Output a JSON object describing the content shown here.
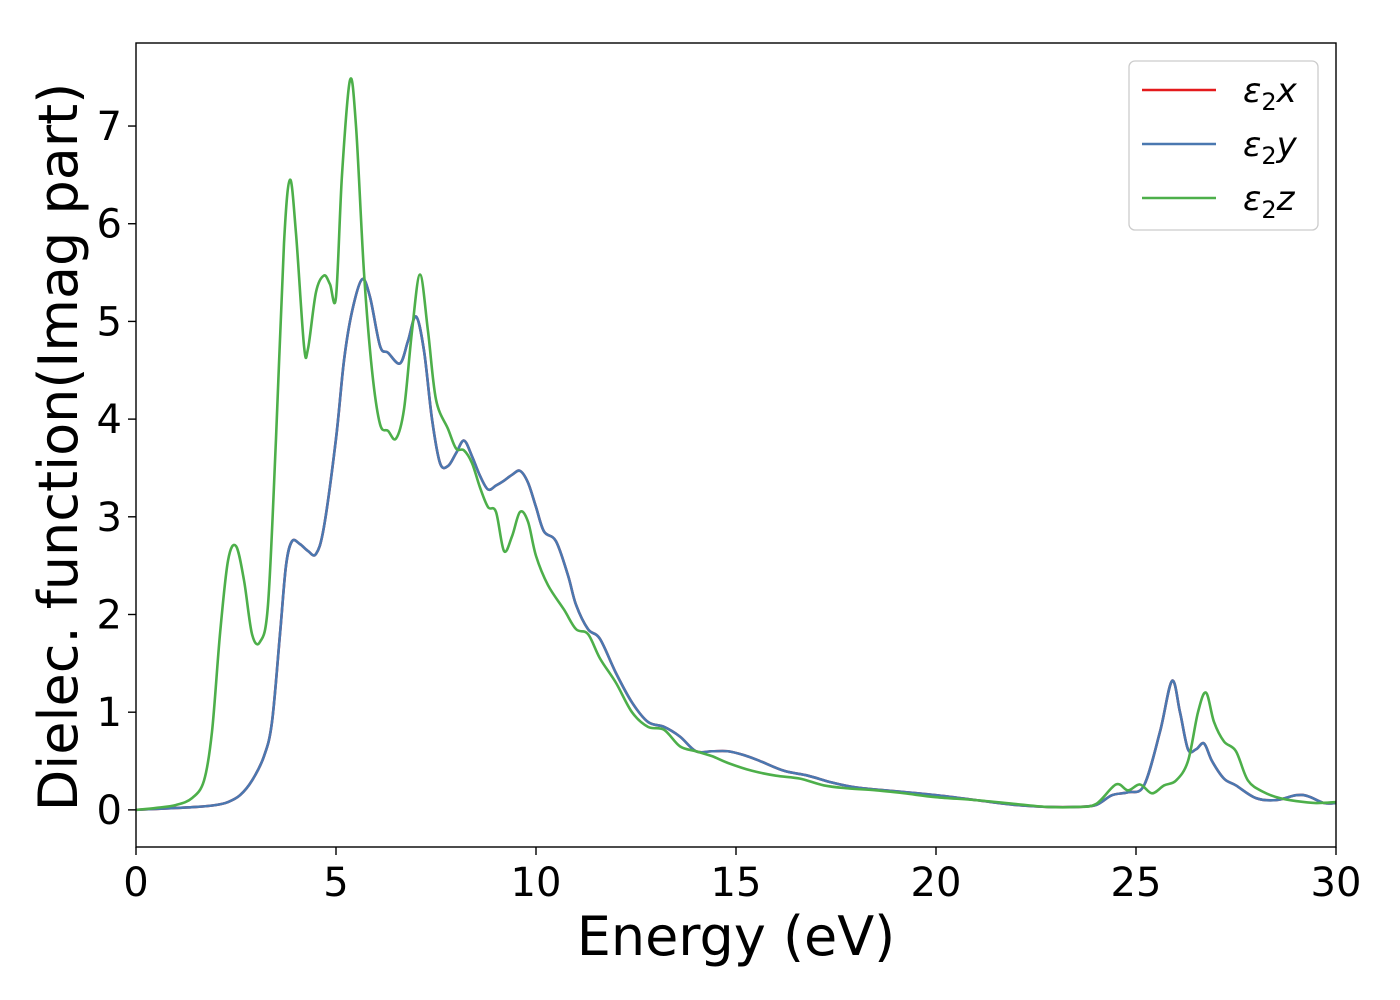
{
  "chart_data": {
    "type": "line",
    "xlabel": "Energy (eV)",
    "ylabel": "Dielec. function(Imag part)",
    "xlim": [
      0,
      30
    ],
    "ylim": [
      -0.38,
      7.85
    ],
    "xticks": [
      0,
      5,
      10,
      15,
      20,
      25,
      30
    ],
    "yticks": [
      0,
      1,
      2,
      3,
      4,
      5,
      6,
      7
    ],
    "grid": false,
    "legend_position": "top-right",
    "series": [
      {
        "name": "ε2x",
        "legend_base": "ε",
        "legend_sub": "2",
        "legend_var": "x",
        "color": "#e41a1c",
        "points": [
          [
            0,
            0.0
          ],
          [
            0.5,
            0.01
          ],
          [
            1.0,
            0.02
          ],
          [
            1.5,
            0.03
          ],
          [
            2.0,
            0.05
          ],
          [
            2.3,
            0.08
          ],
          [
            2.6,
            0.15
          ],
          [
            2.9,
            0.3
          ],
          [
            3.2,
            0.55
          ],
          [
            3.4,
            0.9
          ],
          [
            3.6,
            1.8
          ],
          [
            3.75,
            2.5
          ],
          [
            3.9,
            2.75
          ],
          [
            4.1,
            2.72
          ],
          [
            4.3,
            2.65
          ],
          [
            4.5,
            2.62
          ],
          [
            4.7,
            2.9
          ],
          [
            5.0,
            3.8
          ],
          [
            5.2,
            4.6
          ],
          [
            5.4,
            5.1
          ],
          [
            5.65,
            5.43
          ],
          [
            5.85,
            5.25
          ],
          [
            6.1,
            4.75
          ],
          [
            6.3,
            4.68
          ],
          [
            6.6,
            4.57
          ],
          [
            6.8,
            4.8
          ],
          [
            7.0,
            5.05
          ],
          [
            7.2,
            4.7
          ],
          [
            7.4,
            4.0
          ],
          [
            7.6,
            3.55
          ],
          [
            7.8,
            3.52
          ],
          [
            8.0,
            3.65
          ],
          [
            8.2,
            3.78
          ],
          [
            8.4,
            3.62
          ],
          [
            8.6,
            3.42
          ],
          [
            8.8,
            3.28
          ],
          [
            9.0,
            3.32
          ],
          [
            9.2,
            3.37
          ],
          [
            9.4,
            3.43
          ],
          [
            9.6,
            3.47
          ],
          [
            9.8,
            3.35
          ],
          [
            10.0,
            3.1
          ],
          [
            10.2,
            2.85
          ],
          [
            10.5,
            2.75
          ],
          [
            10.8,
            2.4
          ],
          [
            11.0,
            2.1
          ],
          [
            11.3,
            1.85
          ],
          [
            11.6,
            1.75
          ],
          [
            12.0,
            1.4
          ],
          [
            12.4,
            1.1
          ],
          [
            12.8,
            0.9
          ],
          [
            13.2,
            0.85
          ],
          [
            13.6,
            0.75
          ],
          [
            14.0,
            0.6
          ],
          [
            14.4,
            0.6
          ],
          [
            14.8,
            0.6
          ],
          [
            15.2,
            0.56
          ],
          [
            15.6,
            0.5
          ],
          [
            16.2,
            0.4
          ],
          [
            16.8,
            0.35
          ],
          [
            17.4,
            0.28
          ],
          [
            18.0,
            0.23
          ],
          [
            19.0,
            0.19
          ],
          [
            20.0,
            0.15
          ],
          [
            21.0,
            0.1
          ],
          [
            22.0,
            0.05
          ],
          [
            22.8,
            0.03
          ],
          [
            23.5,
            0.03
          ],
          [
            24.0,
            0.05
          ],
          [
            24.4,
            0.15
          ],
          [
            24.8,
            0.18
          ],
          [
            25.2,
            0.25
          ],
          [
            25.6,
            0.8
          ],
          [
            25.9,
            1.32
          ],
          [
            26.1,
            1.0
          ],
          [
            26.3,
            0.62
          ],
          [
            26.5,
            0.62
          ],
          [
            26.7,
            0.68
          ],
          [
            26.9,
            0.5
          ],
          [
            27.2,
            0.32
          ],
          [
            27.5,
            0.25
          ],
          [
            28.0,
            0.12
          ],
          [
            28.5,
            0.1
          ],
          [
            29.0,
            0.15
          ],
          [
            29.3,
            0.14
          ],
          [
            29.7,
            0.07
          ],
          [
            30.0,
            0.07
          ]
        ]
      },
      {
        "name": "ε2y",
        "legend_base": "ε",
        "legend_sub": "2",
        "legend_var": "y",
        "color": "#4a78b0",
        "points": [
          [
            0,
            0.0
          ],
          [
            0.5,
            0.01
          ],
          [
            1.0,
            0.02
          ],
          [
            1.5,
            0.03
          ],
          [
            2.0,
            0.05
          ],
          [
            2.3,
            0.08
          ],
          [
            2.6,
            0.15
          ],
          [
            2.9,
            0.3
          ],
          [
            3.2,
            0.55
          ],
          [
            3.4,
            0.9
          ],
          [
            3.6,
            1.8
          ],
          [
            3.75,
            2.5
          ],
          [
            3.9,
            2.75
          ],
          [
            4.1,
            2.72
          ],
          [
            4.3,
            2.65
          ],
          [
            4.5,
            2.62
          ],
          [
            4.7,
            2.9
          ],
          [
            5.0,
            3.8
          ],
          [
            5.2,
            4.6
          ],
          [
            5.4,
            5.1
          ],
          [
            5.65,
            5.43
          ],
          [
            5.85,
            5.25
          ],
          [
            6.1,
            4.75
          ],
          [
            6.3,
            4.68
          ],
          [
            6.6,
            4.57
          ],
          [
            6.8,
            4.8
          ],
          [
            7.0,
            5.05
          ],
          [
            7.2,
            4.7
          ],
          [
            7.4,
            4.0
          ],
          [
            7.6,
            3.55
          ],
          [
            7.8,
            3.52
          ],
          [
            8.0,
            3.65
          ],
          [
            8.2,
            3.78
          ],
          [
            8.4,
            3.62
          ],
          [
            8.6,
            3.42
          ],
          [
            8.8,
            3.28
          ],
          [
            9.0,
            3.32
          ],
          [
            9.2,
            3.37
          ],
          [
            9.4,
            3.43
          ],
          [
            9.6,
            3.47
          ],
          [
            9.8,
            3.35
          ],
          [
            10.0,
            3.1
          ],
          [
            10.2,
            2.85
          ],
          [
            10.5,
            2.75
          ],
          [
            10.8,
            2.4
          ],
          [
            11.0,
            2.1
          ],
          [
            11.3,
            1.85
          ],
          [
            11.6,
            1.75
          ],
          [
            12.0,
            1.4
          ],
          [
            12.4,
            1.1
          ],
          [
            12.8,
            0.9
          ],
          [
            13.2,
            0.85
          ],
          [
            13.6,
            0.75
          ],
          [
            14.0,
            0.6
          ],
          [
            14.4,
            0.6
          ],
          [
            14.8,
            0.6
          ],
          [
            15.2,
            0.56
          ],
          [
            15.6,
            0.5
          ],
          [
            16.2,
            0.4
          ],
          [
            16.8,
            0.35
          ],
          [
            17.4,
            0.28
          ],
          [
            18.0,
            0.23
          ],
          [
            19.0,
            0.19
          ],
          [
            20.0,
            0.15
          ],
          [
            21.0,
            0.1
          ],
          [
            22.0,
            0.05
          ],
          [
            22.8,
            0.03
          ],
          [
            23.5,
            0.03
          ],
          [
            24.0,
            0.05
          ],
          [
            24.4,
            0.15
          ],
          [
            24.8,
            0.18
          ],
          [
            25.2,
            0.25
          ],
          [
            25.6,
            0.8
          ],
          [
            25.9,
            1.32
          ],
          [
            26.1,
            1.0
          ],
          [
            26.3,
            0.62
          ],
          [
            26.5,
            0.62
          ],
          [
            26.7,
            0.68
          ],
          [
            26.9,
            0.5
          ],
          [
            27.2,
            0.32
          ],
          [
            27.5,
            0.25
          ],
          [
            28.0,
            0.12
          ],
          [
            28.5,
            0.1
          ],
          [
            29.0,
            0.15
          ],
          [
            29.3,
            0.14
          ],
          [
            29.7,
            0.07
          ],
          [
            30.0,
            0.07
          ]
        ]
      },
      {
        "name": "ε2z",
        "legend_base": "ε",
        "legend_sub": "2",
        "legend_var": "z",
        "color": "#4daf4a",
        "points": [
          [
            0,
            0.0
          ],
          [
            0.5,
            0.02
          ],
          [
            1.0,
            0.05
          ],
          [
            1.4,
            0.12
          ],
          [
            1.7,
            0.3
          ],
          [
            1.9,
            0.8
          ],
          [
            2.1,
            1.8
          ],
          [
            2.3,
            2.55
          ],
          [
            2.5,
            2.7
          ],
          [
            2.7,
            2.35
          ],
          [
            2.9,
            1.8
          ],
          [
            3.1,
            1.72
          ],
          [
            3.3,
            2.1
          ],
          [
            3.5,
            3.8
          ],
          [
            3.7,
            5.8
          ],
          [
            3.85,
            6.45
          ],
          [
            4.0,
            5.9
          ],
          [
            4.2,
            4.75
          ],
          [
            4.3,
            4.72
          ],
          [
            4.5,
            5.3
          ],
          [
            4.7,
            5.47
          ],
          [
            4.85,
            5.38
          ],
          [
            5.0,
            5.25
          ],
          [
            5.15,
            6.5
          ],
          [
            5.35,
            7.47
          ],
          [
            5.5,
            7.0
          ],
          [
            5.7,
            5.5
          ],
          [
            5.9,
            4.5
          ],
          [
            6.1,
            3.95
          ],
          [
            6.3,
            3.88
          ],
          [
            6.5,
            3.8
          ],
          [
            6.7,
            4.1
          ],
          [
            6.9,
            4.9
          ],
          [
            7.1,
            5.48
          ],
          [
            7.3,
            4.9
          ],
          [
            7.5,
            4.2
          ],
          [
            7.8,
            3.9
          ],
          [
            8.0,
            3.7
          ],
          [
            8.2,
            3.68
          ],
          [
            8.4,
            3.55
          ],
          [
            8.6,
            3.3
          ],
          [
            8.8,
            3.1
          ],
          [
            9.0,
            3.05
          ],
          [
            9.2,
            2.65
          ],
          [
            9.4,
            2.8
          ],
          [
            9.6,
            3.05
          ],
          [
            9.8,
            2.95
          ],
          [
            10.0,
            2.6
          ],
          [
            10.3,
            2.3
          ],
          [
            10.7,
            2.05
          ],
          [
            11.0,
            1.85
          ],
          [
            11.3,
            1.8
          ],
          [
            11.6,
            1.55
          ],
          [
            12.0,
            1.3
          ],
          [
            12.4,
            1.0
          ],
          [
            12.8,
            0.85
          ],
          [
            13.2,
            0.82
          ],
          [
            13.6,
            0.65
          ],
          [
            14.0,
            0.6
          ],
          [
            14.4,
            0.55
          ],
          [
            14.8,
            0.48
          ],
          [
            15.4,
            0.4
          ],
          [
            16.0,
            0.35
          ],
          [
            16.6,
            0.32
          ],
          [
            17.2,
            0.25
          ],
          [
            17.8,
            0.22
          ],
          [
            18.5,
            0.2
          ],
          [
            19.2,
            0.17
          ],
          [
            20.0,
            0.13
          ],
          [
            21.0,
            0.1
          ],
          [
            22.0,
            0.06
          ],
          [
            22.8,
            0.03
          ],
          [
            23.5,
            0.03
          ],
          [
            24.0,
            0.06
          ],
          [
            24.5,
            0.26
          ],
          [
            24.8,
            0.2
          ],
          [
            25.1,
            0.26
          ],
          [
            25.4,
            0.17
          ],
          [
            25.7,
            0.25
          ],
          [
            26.0,
            0.3
          ],
          [
            26.3,
            0.5
          ],
          [
            26.55,
            1.0
          ],
          [
            26.75,
            1.2
          ],
          [
            26.95,
            0.9
          ],
          [
            27.2,
            0.7
          ],
          [
            27.5,
            0.6
          ],
          [
            27.8,
            0.3
          ],
          [
            28.2,
            0.18
          ],
          [
            28.6,
            0.12
          ],
          [
            29.0,
            0.09
          ],
          [
            29.5,
            0.07
          ],
          [
            30.0,
            0.08
          ]
        ]
      }
    ]
  }
}
